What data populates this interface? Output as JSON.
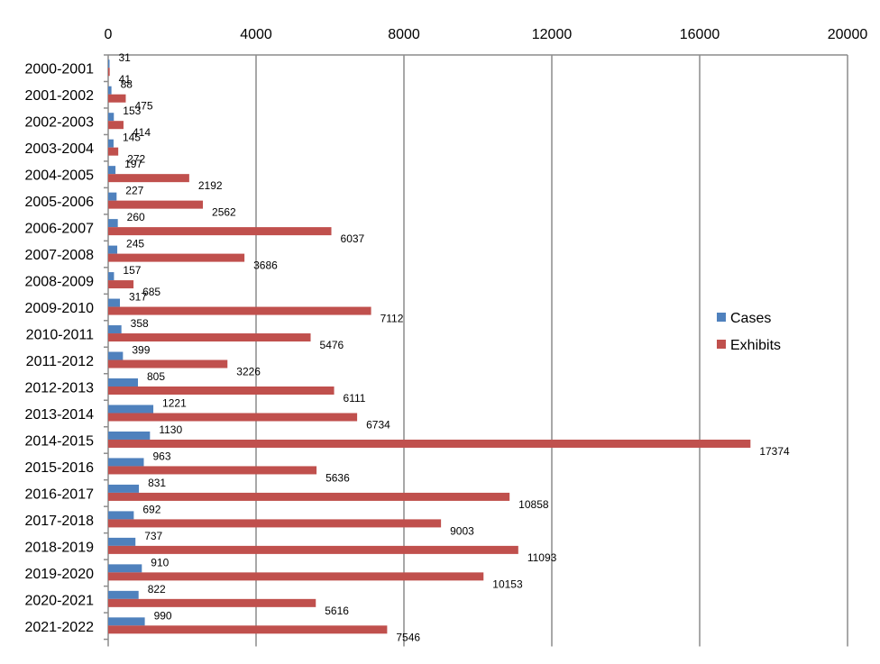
{
  "chart_data": {
    "type": "bar",
    "orientation": "horizontal",
    "categories": [
      "2000-2001",
      "2001-2002",
      "2002-2003",
      "2003-2004",
      "2004-2005",
      "2005-2006",
      "2006-2007",
      "2007-2008",
      "2008-2009",
      "2009-2010",
      "2010-2011",
      "2011-2012",
      "2012-2013",
      "2013-2014",
      "2014-2015",
      "2015-2016",
      "2016-2017",
      "2017-2018",
      "2018-2019",
      "2019-2020",
      "2020-2021",
      "2021-2022"
    ],
    "series": [
      {
        "name": "Cases",
        "color": "#4f81bd",
        "values": [
          31,
          88,
          153,
          145,
          197,
          227,
          260,
          245,
          157,
          317,
          358,
          399,
          805,
          1221,
          1130,
          963,
          831,
          692,
          737,
          910,
          822,
          990
        ]
      },
      {
        "name": "Exhibits",
        "color": "#c0504d",
        "values": [
          41,
          475,
          414,
          272,
          2192,
          2562,
          6037,
          3686,
          685,
          7112,
          5476,
          3226,
          6111,
          6734,
          17374,
          5636,
          10858,
          9003,
          11093,
          10153,
          5616,
          7546
        ]
      }
    ],
    "xlim": [
      0,
      20000
    ],
    "xticks": [
      "0",
      "4000",
      "8000",
      "12000",
      "16000",
      "20000"
    ],
    "x_axis_position": "top",
    "grid": true,
    "legend_position": "right"
  }
}
